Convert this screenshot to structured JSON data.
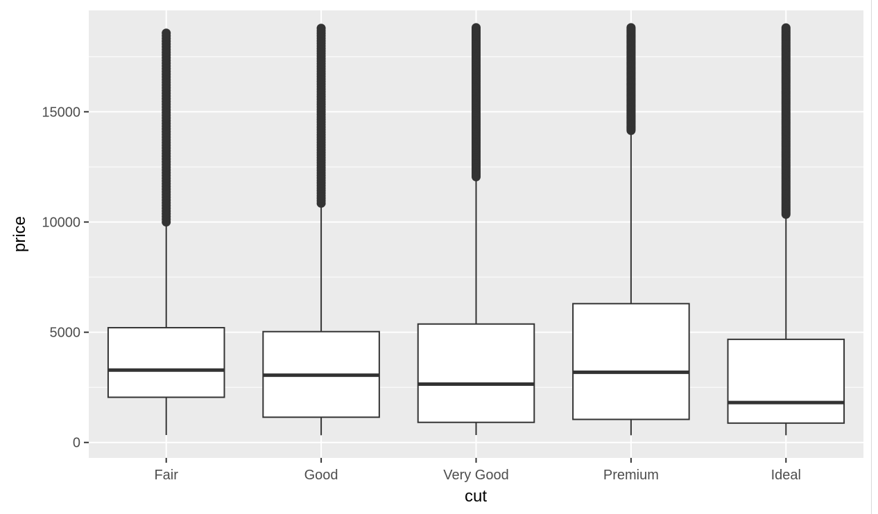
{
  "chart_data": {
    "type": "boxplot",
    "xlabel": "cut",
    "ylabel": "price",
    "title": "",
    "ylim": [
      -700,
      19600
    ],
    "yticks": [
      0,
      5000,
      10000,
      15000
    ],
    "ytick_labels": [
      "0",
      "5000",
      "10000",
      "15000"
    ],
    "grid": true,
    "legend": "none",
    "colors": {
      "panel": "#ebebeb",
      "grid": "#ffffff",
      "box_fill": "#ffffff",
      "box_stroke": "#333333",
      "outlier": "#333333",
      "axis_text": "#4d4d4d",
      "axis_title": "#000000"
    },
    "categories": [
      "Fair",
      "Good",
      "Very Good",
      "Premium",
      "Ideal"
    ],
    "boxes": [
      {
        "category": "Fair",
        "whisker_low": 337,
        "q1": 2050,
        "median": 3282,
        "q3": 5206,
        "whisker_high": 9950,
        "outlier_range": [
          10000,
          18570
        ],
        "outlier_style": "sparse"
      },
      {
        "category": "Good",
        "whisker_low": 327,
        "q1": 1145,
        "median": 3050,
        "q3": 5028,
        "whisker_high": 10800,
        "outlier_range": [
          10850,
          18790
        ],
        "outlier_style": "sparse"
      },
      {
        "category": "Very Good",
        "whisker_low": 336,
        "q1": 912,
        "median": 2648,
        "q3": 5373,
        "whisker_high": 12000,
        "outlier_range": [
          12050,
          18820
        ],
        "outlier_style": "dense"
      },
      {
        "category": "Premium",
        "whisker_low": 326,
        "q1": 1046,
        "median": 3185,
        "q3": 6296,
        "whisker_high": 14100,
        "outlier_range": [
          14150,
          18820
        ],
        "outlier_style": "dense"
      },
      {
        "category": "Ideal",
        "whisker_low": 326,
        "q1": 878,
        "median": 1810,
        "q3": 4678,
        "whisker_high": 10300,
        "outlier_range": [
          10350,
          18810
        ],
        "outlier_style": "dense"
      }
    ]
  }
}
